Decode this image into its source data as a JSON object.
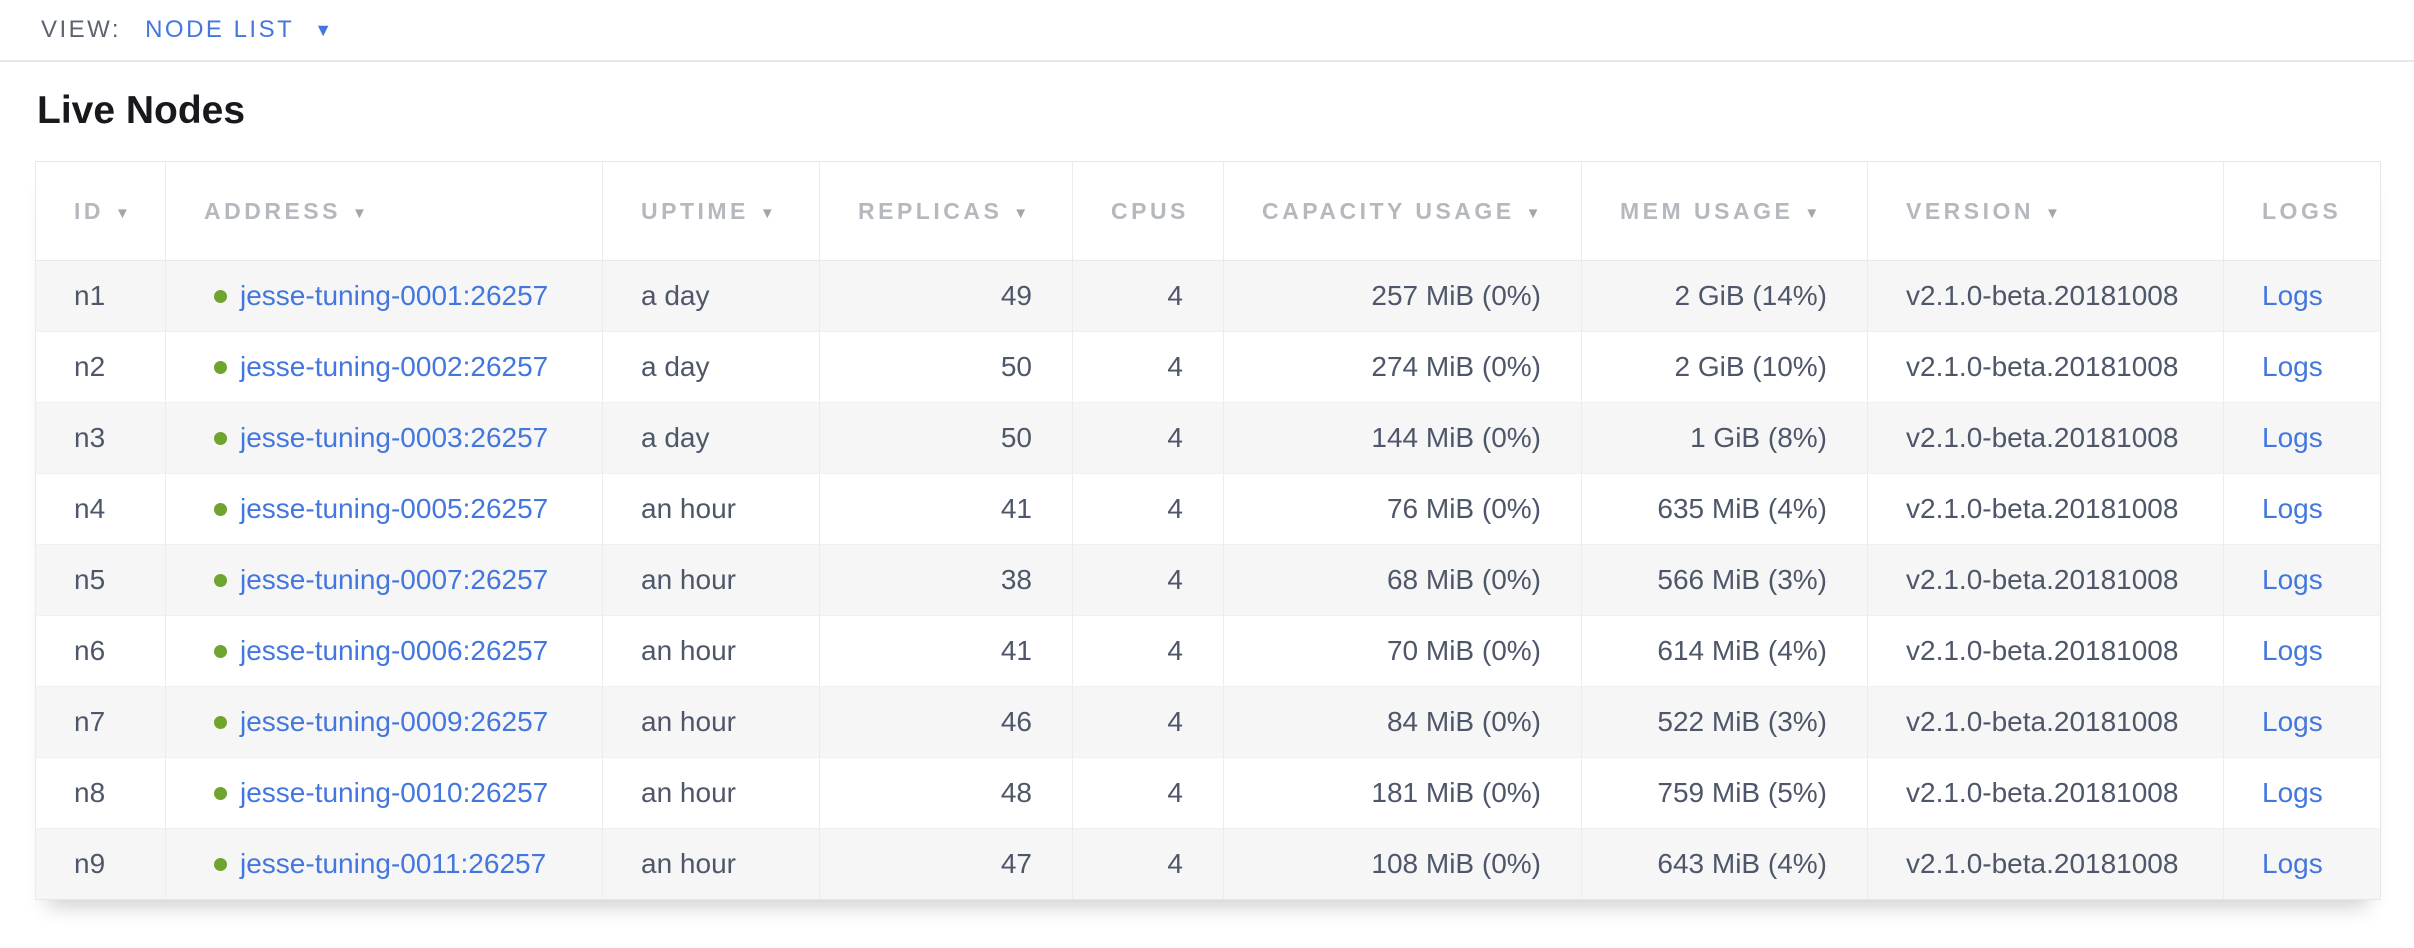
{
  "view_bar": {
    "label": "VIEW:",
    "selected_view": "NODE LIST"
  },
  "page": {
    "title": "Live Nodes"
  },
  "icons": {
    "sort_desc": "▼",
    "dropdown_caret": "▼",
    "node_live_dot": "green-circle"
  },
  "colors": {
    "link_blue": "#4377df",
    "live_green": "#6fa42f",
    "header_gray": "#b5b8be",
    "cell_text": "#4e5769",
    "row_alt_bg": "#f6f6f7"
  },
  "table": {
    "columns": [
      {
        "key": "id",
        "label": "ID",
        "sortable": true,
        "align": "left"
      },
      {
        "key": "address",
        "label": "ADDRESS",
        "sortable": true,
        "align": "left"
      },
      {
        "key": "uptime",
        "label": "UPTIME",
        "sortable": true,
        "align": "left"
      },
      {
        "key": "replicas",
        "label": "REPLICAS",
        "sortable": true,
        "align": "right"
      },
      {
        "key": "cpus",
        "label": "CPUS",
        "sortable": false,
        "align": "right"
      },
      {
        "key": "capacity",
        "label": "CAPACITY USAGE",
        "sortable": true,
        "align": "right"
      },
      {
        "key": "mem",
        "label": "MEM USAGE",
        "sortable": true,
        "align": "right"
      },
      {
        "key": "version",
        "label": "VERSION",
        "sortable": true,
        "align": "left"
      },
      {
        "key": "logs",
        "label": "LOGS",
        "sortable": false,
        "align": "left"
      }
    ],
    "rows": [
      {
        "id": "n1",
        "status": "live",
        "address": "jesse-tuning-0001:26257",
        "uptime": "a day",
        "replicas": "49",
        "cpus": "4",
        "capacity": "257 MiB (0%)",
        "mem": "2 GiB (14%)",
        "version": "v2.1.0-beta.20181008",
        "logs": "Logs"
      },
      {
        "id": "n2",
        "status": "live",
        "address": "jesse-tuning-0002:26257",
        "uptime": "a day",
        "replicas": "50",
        "cpus": "4",
        "capacity": "274 MiB (0%)",
        "mem": "2 GiB (10%)",
        "version": "v2.1.0-beta.20181008",
        "logs": "Logs"
      },
      {
        "id": "n3",
        "status": "live",
        "address": "jesse-tuning-0003:26257",
        "uptime": "a day",
        "replicas": "50",
        "cpus": "4",
        "capacity": "144 MiB (0%)",
        "mem": "1 GiB (8%)",
        "version": "v2.1.0-beta.20181008",
        "logs": "Logs"
      },
      {
        "id": "n4",
        "status": "live",
        "address": "jesse-tuning-0005:26257",
        "uptime": "an hour",
        "replicas": "41",
        "cpus": "4",
        "capacity": "76 MiB (0%)",
        "mem": "635 MiB (4%)",
        "version": "v2.1.0-beta.20181008",
        "logs": "Logs"
      },
      {
        "id": "n5",
        "status": "live",
        "address": "jesse-tuning-0007:26257",
        "uptime": "an hour",
        "replicas": "38",
        "cpus": "4",
        "capacity": "68 MiB (0%)",
        "mem": "566 MiB (3%)",
        "version": "v2.1.0-beta.20181008",
        "logs": "Logs"
      },
      {
        "id": "n6",
        "status": "live",
        "address": "jesse-tuning-0006:26257",
        "uptime": "an hour",
        "replicas": "41",
        "cpus": "4",
        "capacity": "70 MiB (0%)",
        "mem": "614 MiB (4%)",
        "version": "v2.1.0-beta.20181008",
        "logs": "Logs"
      },
      {
        "id": "n7",
        "status": "live",
        "address": "jesse-tuning-0009:26257",
        "uptime": "an hour",
        "replicas": "46",
        "cpus": "4",
        "capacity": "84 MiB (0%)",
        "mem": "522 MiB (3%)",
        "version": "v2.1.0-beta.20181008",
        "logs": "Logs"
      },
      {
        "id": "n8",
        "status": "live",
        "address": "jesse-tuning-0010:26257",
        "uptime": "an hour",
        "replicas": "48",
        "cpus": "4",
        "capacity": "181 MiB (0%)",
        "mem": "759 MiB (5%)",
        "version": "v2.1.0-beta.20181008",
        "logs": "Logs"
      },
      {
        "id": "n9",
        "status": "live",
        "address": "jesse-tuning-0011:26257",
        "uptime": "an hour",
        "replicas": "47",
        "cpus": "4",
        "capacity": "108 MiB (0%)",
        "mem": "643 MiB (4%)",
        "version": "v2.1.0-beta.20181008",
        "logs": "Logs"
      }
    ]
  }
}
